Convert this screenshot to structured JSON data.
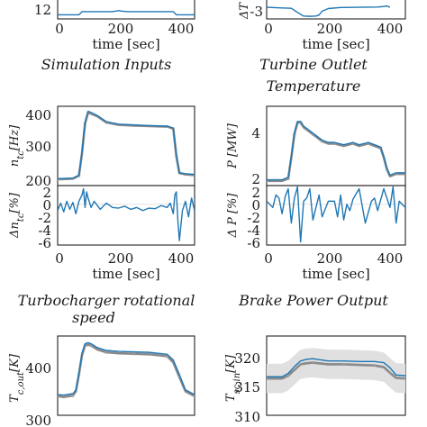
{
  "chart_data": [
    {
      "type": "line",
      "panel": "simulation-inputs-partial",
      "caption": "Simulation Inputs",
      "xlabel": "time [sec]",
      "xticks": [
        "0",
        "200",
        "400"
      ],
      "yticks": [
        "12"
      ],
      "xlim": [
        0,
        450
      ],
      "ylim": [
        10,
        20
      ],
      "series": [
        {
          "color": "#1f77b4",
          "x": [
            0,
            20,
            50,
            70,
            80,
            180,
            200,
            210,
            230,
            300,
            360,
            380,
            390,
            410,
            450
          ],
          "y": [
            12,
            12,
            12,
            12,
            13.5,
            13.5,
            14,
            13.8,
            13.5,
            13.5,
            13.5,
            13.5,
            12,
            12,
            12
          ]
        }
      ]
    },
    {
      "type": "line",
      "panel": "turbine-outlet-temperature-error",
      "caption": "Turbine Outlet Temperature",
      "ylabel": "ΔT",
      "xlabel": "time [sec]",
      "xticks": [
        "0",
        "200",
        "400"
      ],
      "yticks": [
        "-3"
      ],
      "xlim": [
        0,
        450
      ],
      "ylim": [
        -4,
        4
      ],
      "series": [
        {
          "color": "#1f77b4",
          "x": [
            0,
            40,
            80,
            100,
            120,
            140,
            160,
            170,
            180,
            200,
            240,
            300,
            360,
            380,
            390,
            400
          ],
          "y": [
            0.5,
            0.3,
            0.1,
            -1.5,
            -2.9,
            -3.0,
            -2.9,
            -2.5,
            -1.0,
            0.0,
            0.4,
            0.5,
            0.6,
            0.8,
            1.0,
            0.5
          ]
        }
      ]
    },
    {
      "type": "line",
      "panel": "turbocharger-speed",
      "caption": "Turbocharger rotational speed",
      "ylabel": "n_tc [Hz]",
      "yticks": [
        "200",
        "300",
        "400"
      ],
      "xlim": [
        0,
        450
      ],
      "ylim": [
        130,
        450
      ],
      "series": [
        {
          "color": "#8a8a8a",
          "x": [
            0,
            50,
            70,
            80,
            90,
            100,
            110,
            130,
            160,
            200,
            250,
            300,
            360,
            380,
            390,
            400,
            420,
            450
          ],
          "y": [
            155,
            158,
            170,
            260,
            380,
            425,
            420,
            410,
            385,
            375,
            372,
            370,
            368,
            360,
            250,
            180,
            175,
            172
          ]
        },
        {
          "color": "#1f77b4",
          "x": [
            0,
            50,
            70,
            80,
            90,
            100,
            110,
            130,
            160,
            200,
            250,
            300,
            360,
            380,
            390,
            400,
            420,
            450
          ],
          "y": [
            158,
            160,
            172,
            265,
            385,
            430,
            425,
            413,
            388,
            378,
            375,
            372,
            370,
            362,
            255,
            182,
            178,
            175
          ]
        }
      ]
    },
    {
      "type": "line",
      "panel": "turbocharger-speed-error",
      "ylabel": "Δn_tc [%]",
      "xlabel": "time [sec]",
      "xticks": [
        "0",
        "200",
        "400"
      ],
      "yticks": [
        "-6",
        "-4",
        "-2",
        "0",
        "2"
      ],
      "xlim": [
        0,
        450
      ],
      "ylim": [
        -6.5,
        3
      ],
      "series": [
        {
          "color": "#1f77b4",
          "x": [
            0,
            10,
            20,
            30,
            40,
            50,
            60,
            70,
            80,
            85,
            90,
            95,
            100,
            110,
            120,
            140,
            160,
            180,
            200,
            220,
            240,
            260,
            280,
            300,
            320,
            340,
            360,
            370,
            380,
            385,
            390,
            395,
            400,
            410,
            420,
            430,
            440,
            450
          ],
          "y": [
            -1.0,
            0.2,
            -1.2,
            0.5,
            -0.8,
            0.3,
            -1.5,
            0.5,
            1.5,
            2.5,
            -0.5,
            2.0,
            1.0,
            -0.5,
            0.5,
            -0.8,
            0.2,
            -0.5,
            -0.6,
            -0.3,
            -0.8,
            -0.5,
            -1.0,
            -0.6,
            -0.7,
            -0.2,
            -0.5,
            0.2,
            -1.5,
            1.5,
            2.0,
            -2.5,
            -5.8,
            -1.0,
            0.5,
            -2.0,
            1.0,
            -1.0
          ]
        }
      ]
    },
    {
      "type": "line",
      "panel": "brake-power",
      "caption": "Brake Power Output",
      "ylabel": "P [MW]",
      "yticks": [
        "2",
        "4"
      ],
      "xlim": [
        0,
        450
      ],
      "ylim": [
        1.8,
        5.2
      ],
      "series": [
        {
          "color": "#8a8a8a",
          "x": [
            0,
            50,
            70,
            80,
            90,
            100,
            110,
            120,
            130,
            140,
            150,
            160,
            180,
            200,
            220,
            250,
            280,
            300,
            330,
            350,
            370,
            380,
            390,
            400,
            420,
            450
          ],
          "y": [
            2.0,
            2.0,
            2.1,
            3.0,
            4.0,
            4.5,
            4.5,
            4.3,
            4.2,
            4.1,
            4.0,
            3.9,
            3.7,
            3.6,
            3.6,
            3.5,
            3.6,
            3.5,
            3.6,
            3.5,
            3.4,
            3.0,
            2.5,
            2.2,
            2.3,
            2.3
          ]
        },
        {
          "color": "#1f77b4",
          "x": [
            0,
            50,
            70,
            80,
            90,
            100,
            110,
            120,
            130,
            140,
            150,
            160,
            180,
            200,
            220,
            250,
            280,
            300,
            330,
            350,
            370,
            380,
            390,
            400,
            420,
            450
          ],
          "y": [
            2.05,
            2.05,
            2.15,
            3.05,
            4.05,
            4.55,
            4.55,
            4.35,
            4.25,
            4.15,
            4.05,
            3.95,
            3.75,
            3.65,
            3.65,
            3.55,
            3.65,
            3.55,
            3.65,
            3.55,
            3.45,
            3.05,
            2.55,
            2.25,
            2.35,
            2.35
          ]
        }
      ]
    },
    {
      "type": "line",
      "panel": "brake-power-error",
      "ylabel": "Δ P [%]",
      "xlabel": "time [sec]",
      "xticks": [
        "0",
        "200",
        "400"
      ],
      "yticks": [
        "-6",
        "-4",
        "-2",
        "0",
        "2"
      ],
      "xlim": [
        0,
        450
      ],
      "ylim": [
        -6.5,
        3
      ],
      "series": [
        {
          "color": "#1f77b4",
          "x": [
            0,
            20,
            30,
            40,
            50,
            60,
            70,
            80,
            90,
            100,
            110,
            120,
            130,
            140,
            150,
            160,
            170,
            180,
            200,
            220,
            230,
            240,
            250,
            260,
            270,
            280,
            300,
            320,
            340,
            350,
            360,
            380,
            390,
            400,
            410,
            420,
            430,
            440,
            450
          ],
          "y": [
            0.5,
            -0.5,
            1.5,
            1.0,
            -1.5,
            1.2,
            2.5,
            -3.0,
            1.0,
            2.8,
            -6.0,
            0.5,
            1.0,
            2.5,
            -2.5,
            -0.5,
            1.5,
            -2.0,
            0.5,
            0.5,
            -2.0,
            1.5,
            -2.5,
            0.0,
            -1.0,
            0.8,
            2.5,
            -3.0,
            0.5,
            1.0,
            -1.0,
            2.5,
            1.0,
            -0.5,
            2.8,
            -3.0,
            0.5,
            0.0,
            -0.5
          ]
        }
      ]
    },
    {
      "type": "line",
      "panel": "compressor-outlet-temperature",
      "ylabel": "T_c,out [K]",
      "yticks": [
        "300",
        "400"
      ],
      "xlim": [
        0,
        450
      ],
      "ylim": [
        295,
        460
      ],
      "series": [
        {
          "color": "#8a8a8a",
          "x": [
            0,
            20,
            50,
            60,
            70,
            80,
            90,
            100,
            110,
            130,
            160,
            200,
            250,
            300,
            360,
            380,
            400,
            420,
            450
          ],
          "y": [
            335,
            333,
            336,
            345,
            380,
            420,
            440,
            442,
            440,
            432,
            426,
            424,
            423,
            422,
            418,
            405,
            375,
            345,
            335
          ]
        },
        {
          "color": "#1f77b4",
          "x": [
            0,
            20,
            50,
            60,
            70,
            80,
            90,
            100,
            110,
            130,
            160,
            200,
            250,
            300,
            360,
            380,
            400,
            420,
            450
          ],
          "y": [
            338,
            337,
            340,
            348,
            383,
            425,
            444,
            446,
            444,
            436,
            430,
            428,
            427,
            426,
            422,
            410,
            380,
            348,
            338
          ]
        }
      ]
    },
    {
      "type": "line",
      "panel": "scavenging-air-temperature",
      "ylabel": "T_sc,in [K]",
      "yticks": [
        "310",
        "315",
        "320"
      ],
      "xlim": [
        0,
        450
      ],
      "ylim": [
        309,
        323
      ],
      "series": [
        {
          "color": "#8a8a8a",
          "x": [
            0,
            50,
            70,
            90,
            110,
            130,
            150,
            200,
            250,
            300,
            350,
            380,
            400,
            420,
            450
          ],
          "y": [
            315.5,
            315.5,
            316.0,
            317.0,
            318.0,
            318.2,
            318.3,
            318.0,
            318.0,
            317.9,
            317.8,
            317.5,
            316.5,
            315.6,
            315.5
          ]
        },
        {
          "color": "#1f77b4",
          "x": [
            0,
            50,
            70,
            90,
            110,
            130,
            150,
            200,
            250,
            300,
            350,
            380,
            400,
            420,
            450
          ],
          "y": [
            315.8,
            315.8,
            316.4,
            317.6,
            318.6,
            318.9,
            319.0,
            318.6,
            318.6,
            318.5,
            318.5,
            318.3,
            317.4,
            316.1,
            316.0
          ]
        }
      ]
    }
  ]
}
